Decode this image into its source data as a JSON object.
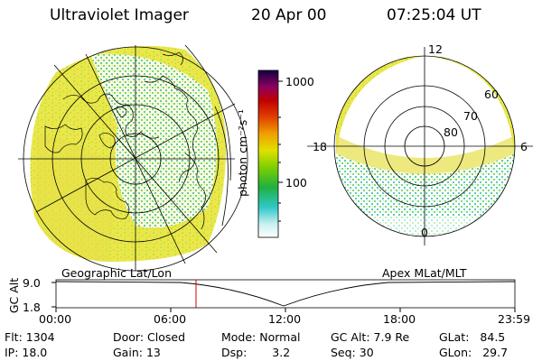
{
  "header": {
    "title": "Ultraviolet Imager",
    "date": "20 Apr 00",
    "time": "07:25:04 UT"
  },
  "colorbar": {
    "unit_label": "photon cm⁻²s⁻¹",
    "ticks": [
      "1000",
      "100"
    ]
  },
  "polar_plot": {
    "mlt_labels": {
      "top": "12",
      "left": "18",
      "right": "6",
      "bottom": "0"
    },
    "mlat_labels": [
      "60",
      "70",
      "80"
    ]
  },
  "panel_labels": {
    "left": "Geographic Lat/Lon",
    "right": "Apex MLat/MLT"
  },
  "altitude_plot": {
    "axis_label": "GC Alt",
    "y_ticks": [
      "9.0",
      "1.8"
    ],
    "x_ticks": [
      "00:00",
      "06:00",
      "12:00",
      "18:00",
      "23:59"
    ]
  },
  "info": {
    "flt": {
      "label": "Flt:",
      "value": "1304"
    },
    "ip": {
      "label": "IP:",
      "value": "18.0"
    },
    "door": {
      "label": "Door:",
      "value": "Closed"
    },
    "gain": {
      "label": "Gain:",
      "value": "13"
    },
    "mode": {
      "label": "Mode:",
      "value": "Normal"
    },
    "dsp": {
      "label": "Dsp:",
      "value": "3.2"
    },
    "gc_alt": {
      "label": "GC Alt:",
      "value": "7.9 Re"
    },
    "seq": {
      "label": "Seq:",
      "value": "30"
    },
    "glat": {
      "label": "GLat:",
      "value": "84.5"
    },
    "glon": {
      "label": "GLon:",
      "value": "29.7"
    }
  },
  "colors": {
    "background": "#ffffff",
    "cursor_line": "#d40000",
    "image_yellow": "#e8e84a",
    "image_green": "#7ed957",
    "image_cyan": "#37c8c8"
  }
}
